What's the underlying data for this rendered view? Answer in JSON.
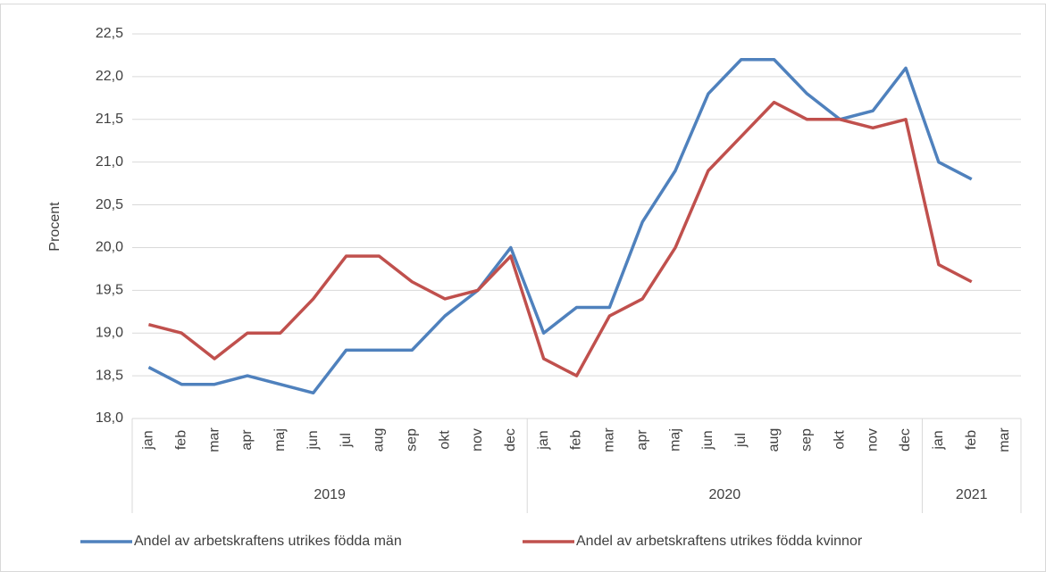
{
  "chart_data": {
    "type": "line",
    "y_label": "Procent",
    "categories": [
      "jan",
      "feb",
      "mar",
      "apr",
      "maj",
      "jun",
      "jul",
      "aug",
      "sep",
      "okt",
      "nov",
      "dec",
      "jan",
      "feb",
      "mar",
      "apr",
      "maj",
      "jun",
      "jul",
      "aug",
      "sep",
      "okt",
      "nov",
      "dec",
      "jan",
      "feb",
      "mar"
    ],
    "groups": [
      "2019",
      "2020",
      "2021"
    ],
    "group_sizes": [
      12,
      12,
      3
    ],
    "series": [
      {
        "name": "Andel av arbetskraftens utrikes födda män",
        "color": "#4f81bd",
        "values": [
          18.6,
          18.4,
          18.4,
          18.5,
          18.4,
          18.3,
          18.8,
          18.8,
          18.8,
          19.2,
          19.5,
          20.0,
          19.0,
          19.3,
          19.3,
          20.3,
          20.9,
          21.8,
          22.2,
          22.2,
          21.8,
          21.5,
          21.6,
          22.1,
          21.0,
          20.8,
          null
        ]
      },
      {
        "name": "Andel av arbetskraftens utrikes födda kvinnor",
        "color": "#c0504d",
        "values": [
          19.1,
          19.0,
          18.7,
          19.0,
          19.0,
          19.4,
          19.9,
          19.9,
          19.6,
          19.4,
          19.5,
          19.9,
          18.7,
          18.5,
          19.2,
          19.4,
          20.0,
          20.9,
          21.3,
          21.7,
          21.5,
          21.5,
          21.4,
          21.5,
          19.8,
          19.6,
          null
        ]
      }
    ],
    "ylim": [
      18.0,
      22.5
    ],
    "yticks": [
      {
        "value": 18.0,
        "label": "18,0"
      },
      {
        "value": 18.5,
        "label": "18,5"
      },
      {
        "value": 19.0,
        "label": "19,0"
      },
      {
        "value": 19.5,
        "label": "19,5"
      },
      {
        "value": 20.0,
        "label": "20,0"
      },
      {
        "value": 20.5,
        "label": "20,5"
      },
      {
        "value": 21.0,
        "label": "21,0"
      },
      {
        "value": 21.5,
        "label": "21,5"
      },
      {
        "value": 22.0,
        "label": "22,0"
      },
      {
        "value": 22.5,
        "label": "22,5"
      }
    ],
    "grid": true,
    "legend": "bottom"
  }
}
